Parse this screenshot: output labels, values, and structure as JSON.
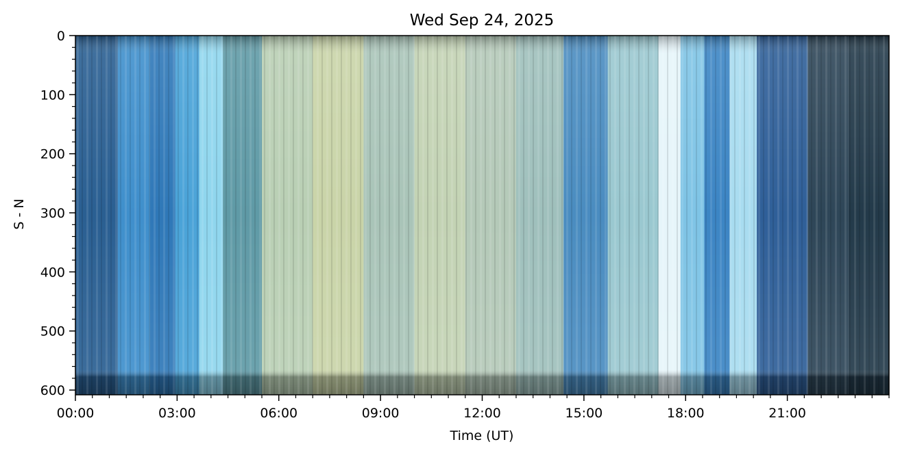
{
  "chart_data": {
    "type": "heatmap",
    "title": "Wed Sep 24, 2025",
    "xlabel": "Time (UT)",
    "ylabel": "S - N",
    "xlim": [
      0,
      24
    ],
    "ylim": [
      608,
      0
    ],
    "x_ticks": [
      {
        "value": 0,
        "label": "00:00"
      },
      {
        "value": 3,
        "label": "03:00"
      },
      {
        "value": 6,
        "label": "06:00"
      },
      {
        "value": 9,
        "label": "09:00"
      },
      {
        "value": 12,
        "label": "12:00"
      },
      {
        "value": 15,
        "label": "15:00"
      },
      {
        "value": 18,
        "label": "18:00"
      },
      {
        "value": 21,
        "label": "21:00"
      }
    ],
    "x_minor_step": 0.5,
    "y_ticks": [
      {
        "value": 0,
        "label": "0"
      },
      {
        "value": 100,
        "label": "100"
      },
      {
        "value": 200,
        "label": "200"
      },
      {
        "value": 300,
        "label": "300"
      },
      {
        "value": 400,
        "label": "400"
      },
      {
        "value": 500,
        "label": "500"
      },
      {
        "value": 600,
        "label": "600"
      }
    ],
    "y_minor_step": 20,
    "bands": [
      {
        "start": 0.0,
        "end": 1.25,
        "color": "#2a5f92"
      },
      {
        "start": 1.25,
        "end": 2.2,
        "color": "#3f8fcc"
      },
      {
        "start": 2.2,
        "end": 2.95,
        "color": "#2f78b8"
      },
      {
        "start": 2.95,
        "end": 3.65,
        "color": "#4aa3d8"
      },
      {
        "start": 3.65,
        "end": 4.35,
        "color": "#8fd6ee"
      },
      {
        "start": 4.35,
        "end": 5.5,
        "color": "#5f9aa6"
      },
      {
        "start": 5.5,
        "end": 7.0,
        "color": "#b9cfb4"
      },
      {
        "start": 7.0,
        "end": 8.5,
        "color": "#c9d4a8"
      },
      {
        "start": 8.5,
        "end": 10.0,
        "color": "#a9c4b8"
      },
      {
        "start": 10.0,
        "end": 11.5,
        "color": "#c3d3b4"
      },
      {
        "start": 11.5,
        "end": 13.0,
        "color": "#b4c9b8"
      },
      {
        "start": 13.0,
        "end": 14.4,
        "color": "#9fc0bc"
      },
      {
        "start": 14.4,
        "end": 15.7,
        "color": "#4a8cc0"
      },
      {
        "start": 15.7,
        "end": 17.2,
        "color": "#9ac8d0"
      },
      {
        "start": 17.2,
        "end": 17.85,
        "color": "#e6f5fa"
      },
      {
        "start": 17.85,
        "end": 18.55,
        "color": "#7fc4e6"
      },
      {
        "start": 18.55,
        "end": 19.3,
        "color": "#3c85c4"
      },
      {
        "start": 19.3,
        "end": 20.1,
        "color": "#a8dcf0"
      },
      {
        "start": 20.1,
        "end": 21.6,
        "color": "#2f5f98"
      },
      {
        "start": 21.6,
        "end": 22.8,
        "color": "#2e4658"
      },
      {
        "start": 22.8,
        "end": 24.0,
        "color": "#233a4a"
      }
    ]
  }
}
